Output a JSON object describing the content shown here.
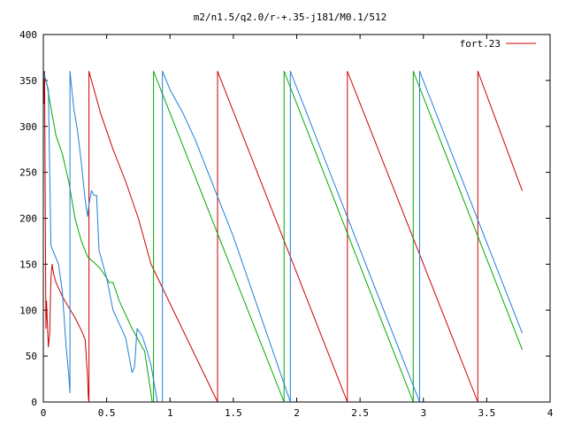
{
  "chart_data": {
    "type": "line",
    "title": "m2/n1.5/q2.0/r-+.35-j181/M0.1/512",
    "xlabel": "",
    "ylabel": "",
    "xlim": [
      0,
      4
    ],
    "ylim": [
      0,
      400
    ],
    "x_ticks": [
      0,
      0.5,
      1,
      1.5,
      2,
      2.5,
      3,
      3.5,
      4
    ],
    "x_tick_labels": [
      "0",
      "0.5",
      "1",
      "1.5",
      "2",
      "2.5",
      "3",
      "3.5",
      "4"
    ],
    "y_ticks": [
      0,
      50,
      100,
      150,
      200,
      250,
      300,
      350,
      400
    ],
    "y_tick_labels": [
      "0",
      "50",
      "100",
      "150",
      "200",
      "250",
      "300",
      "350",
      "400"
    ],
    "grid": false,
    "legend": {
      "position": "top-right",
      "entries": [
        "fort.23"
      ]
    },
    "series": [
      {
        "name": "fort.23",
        "color": "#cc0000",
        "points": [
          [
            0.0,
            360
          ],
          [
            0.005,
            325
          ],
          [
            0.01,
            360
          ],
          [
            0.02,
            80
          ],
          [
            0.025,
            110
          ],
          [
            0.035,
            75
          ],
          [
            0.04,
            60
          ],
          [
            0.05,
            75
          ],
          [
            0.06,
            135
          ],
          [
            0.07,
            150
          ],
          [
            0.08,
            140
          ],
          [
            0.1,
            130
          ],
          [
            0.15,
            115
          ],
          [
            0.2,
            103
          ],
          [
            0.25,
            92
          ],
          [
            0.3,
            78
          ],
          [
            0.33,
            68
          ],
          [
            0.35,
            25
          ],
          [
            0.355,
            5
          ],
          [
            0.36,
            0
          ],
          [
            0.36,
            360
          ],
          [
            0.45,
            315
          ],
          [
            0.55,
            275
          ],
          [
            0.65,
            240
          ],
          [
            0.75,
            200
          ],
          [
            0.8,
            175
          ],
          [
            0.85,
            150
          ],
          [
            1.375,
            0
          ],
          [
            1.375,
            360
          ],
          [
            2.4,
            0
          ],
          [
            2.4,
            360
          ],
          [
            3.43,
            0
          ],
          [
            3.43,
            360
          ],
          [
            3.78,
            230
          ]
        ]
      },
      {
        "color": "#00aa00",
        "points": [
          [
            0.0,
            360
          ],
          [
            0.01,
            355
          ],
          [
            0.03,
            345
          ],
          [
            0.06,
            320
          ],
          [
            0.1,
            290
          ],
          [
            0.15,
            270
          ],
          [
            0.2,
            240
          ],
          [
            0.25,
            200
          ],
          [
            0.3,
            175
          ],
          [
            0.35,
            158
          ],
          [
            0.4,
            152
          ],
          [
            0.45,
            145
          ],
          [
            0.5,
            135
          ],
          [
            0.52,
            130
          ],
          [
            0.55,
            130
          ],
          [
            0.6,
            110
          ],
          [
            0.7,
            80
          ],
          [
            0.8,
            55
          ],
          [
            0.86,
            0
          ],
          [
            0.87,
            0
          ],
          [
            0.87,
            360
          ],
          [
            1.9,
            0
          ],
          [
            1.9,
            360
          ],
          [
            2.92,
            0
          ],
          [
            2.92,
            360
          ],
          [
            3.78,
            57
          ]
        ]
      },
      {
        "color": "#1f7fd6",
        "points": [
          [
            0.0,
            0
          ],
          [
            0.0,
            360
          ],
          [
            0.01,
            355
          ],
          [
            0.04,
            340
          ],
          [
            0.06,
            170
          ],
          [
            0.09,
            160
          ],
          [
            0.12,
            150
          ],
          [
            0.15,
            120
          ],
          [
            0.18,
            60
          ],
          [
            0.2,
            30
          ],
          [
            0.21,
            10
          ],
          [
            0.21,
            360
          ],
          [
            0.24,
            320
          ],
          [
            0.27,
            295
          ],
          [
            0.3,
            260
          ],
          [
            0.33,
            220
          ],
          [
            0.35,
            202
          ],
          [
            0.36,
            215
          ],
          [
            0.38,
            230
          ],
          [
            0.4,
            225
          ],
          [
            0.42,
            225
          ],
          [
            0.44,
            165
          ],
          [
            0.46,
            155
          ],
          [
            0.5,
            135
          ],
          [
            0.55,
            100
          ],
          [
            0.6,
            85
          ],
          [
            0.65,
            70
          ],
          [
            0.7,
            32
          ],
          [
            0.72,
            38
          ],
          [
            0.74,
            80
          ],
          [
            0.78,
            72
          ],
          [
            0.82,
            55
          ],
          [
            0.85,
            40
          ],
          [
            0.9,
            0
          ],
          [
            0.94,
            0
          ],
          [
            0.94,
            360
          ],
          [
            1.0,
            340
          ],
          [
            1.1,
            315
          ],
          [
            1.2,
            285
          ],
          [
            1.3,
            250
          ],
          [
            1.4,
            215
          ],
          [
            1.5,
            180
          ],
          [
            1.6,
            140
          ],
          [
            1.7,
            100
          ],
          [
            1.8,
            60
          ],
          [
            1.95,
            0
          ],
          [
            1.95,
            360
          ],
          [
            2.97,
            0
          ],
          [
            2.97,
            360
          ],
          [
            3.78,
            75
          ]
        ]
      }
    ]
  }
}
